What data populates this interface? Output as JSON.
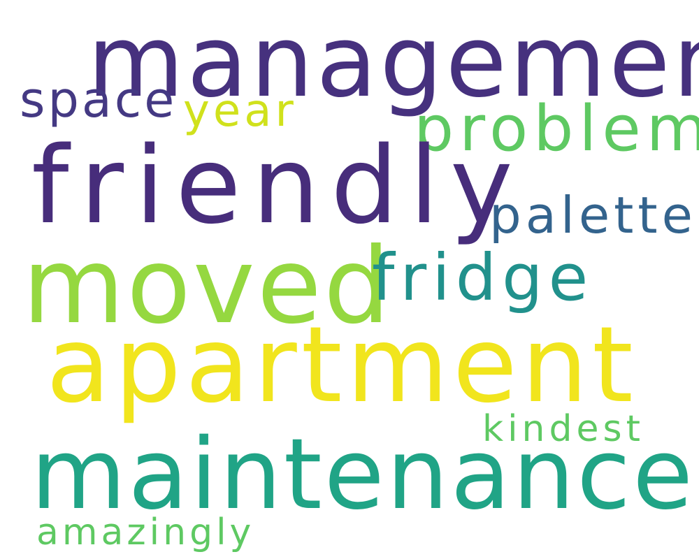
{
  "background_color": "#ffffff",
  "words": {
    "management": {
      "text": "management",
      "color": "#46317e"
    },
    "space": {
      "text": "space",
      "color": "#443983"
    },
    "year": {
      "text": "year",
      "color": "#d0e11c"
    },
    "problem": {
      "text": "problem",
      "color": "#5ec962"
    },
    "friendly": {
      "text": "friendly",
      "color": "#472d7b"
    },
    "palette": {
      "text": "palette",
      "color": "#33638d"
    },
    "moved": {
      "text": "moved",
      "color": "#95d840"
    },
    "fridge": {
      "text": "fridge",
      "color": "#21918c"
    },
    "apartment": {
      "text": "apartment",
      "color": "#f1e51d"
    },
    "kindest": {
      "text": "kindest",
      "color": "#5ec962"
    },
    "maintenance": {
      "text": "maintenance",
      "color": "#20a486"
    },
    "amazingly": {
      "text": "amazingly",
      "color": "#5ec962"
    }
  }
}
